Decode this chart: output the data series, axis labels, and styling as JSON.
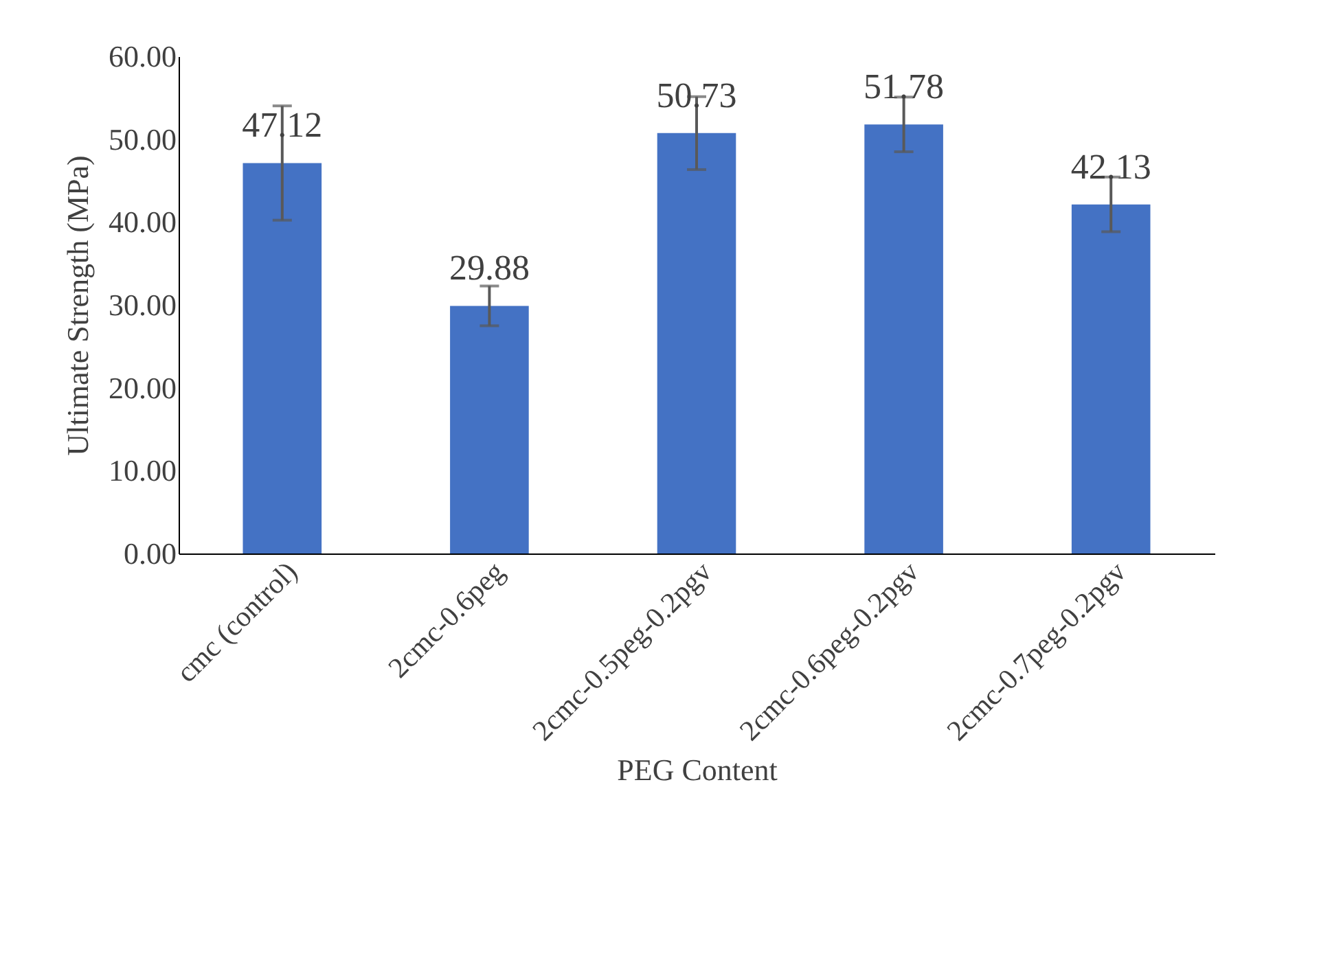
{
  "chart_data": {
    "type": "bar",
    "xlabel": "PEG Content",
    "ylabel": "Ultimate Strength (MPa)",
    "categories": [
      "cmc (control)",
      "2cmc-0.6peg",
      "2cmc-0.5peg-0.2pgv",
      "2cmc-0.6peg-0.2pgv",
      "2cmc-0.7peg-0.2pgv"
    ],
    "values": [
      47.12,
      29.88,
      50.73,
      51.78,
      42.13
    ],
    "errors": [
      6.9,
      2.4,
      4.4,
      3.3,
      3.3
    ],
    "color": "#4472c4",
    "ylim": [
      0,
      60
    ],
    "yticks": [
      {
        "value": 0,
        "label": "0.00"
      },
      {
        "value": 10,
        "label": "10.00"
      },
      {
        "value": 20,
        "label": "20.00"
      },
      {
        "value": 30,
        "label": "30.00"
      },
      {
        "value": 40,
        "label": "40.00"
      },
      {
        "value": 50,
        "label": "50.00"
      },
      {
        "value": 60,
        "label": "60.00"
      }
    ],
    "grid": false,
    "data_labels": true
  }
}
